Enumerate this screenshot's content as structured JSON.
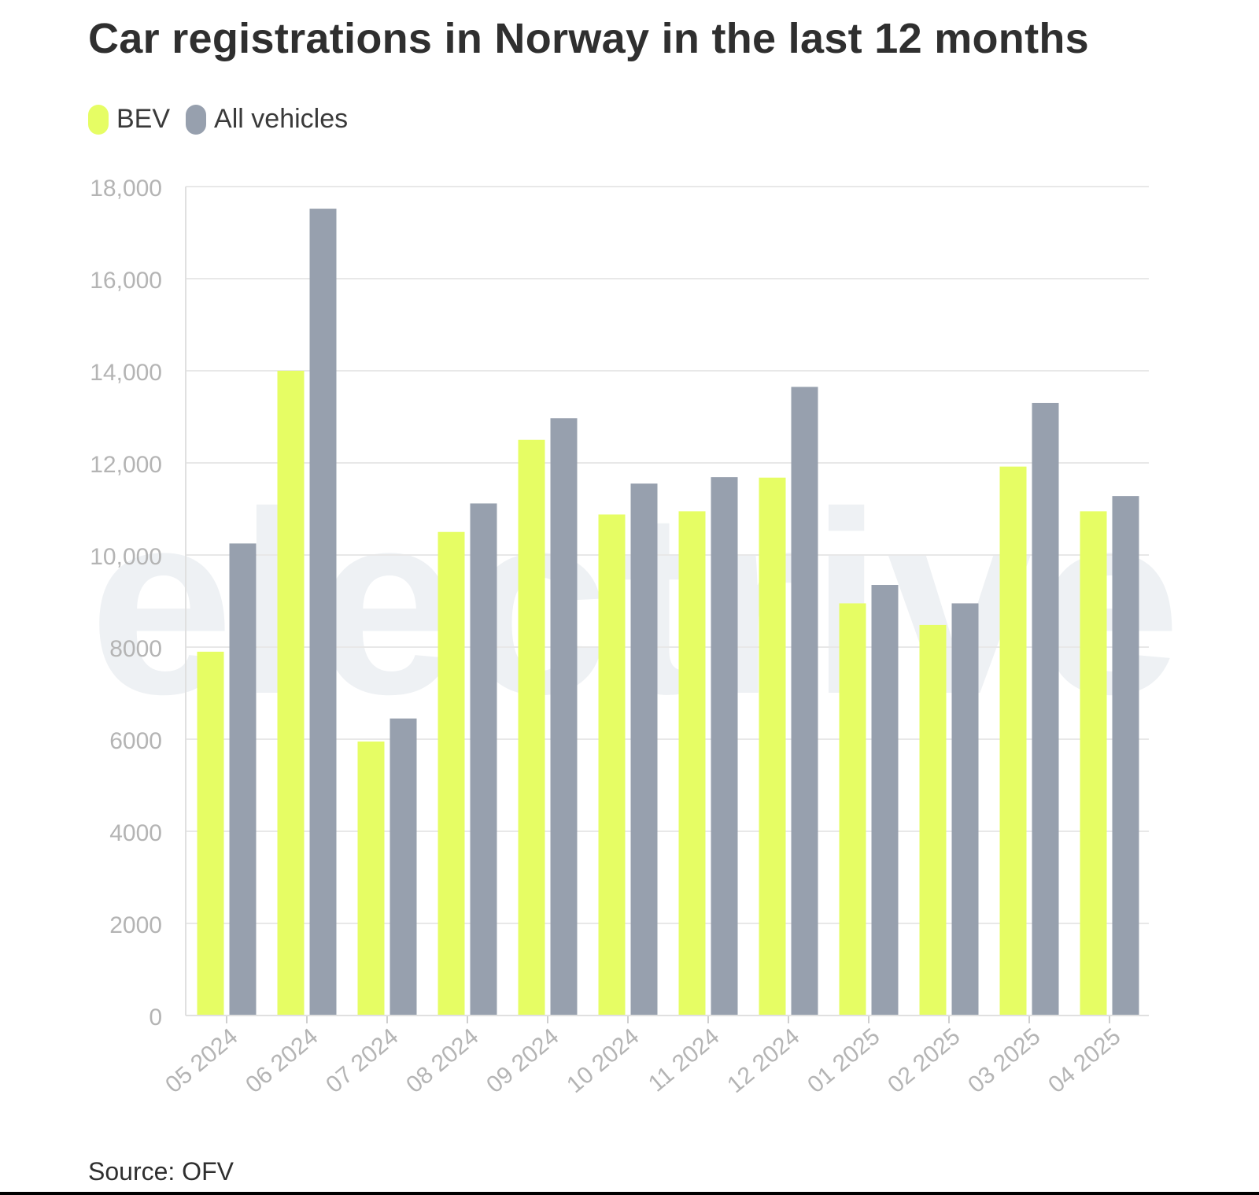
{
  "chart_data": {
    "type": "bar",
    "title": "Car registrations in Norway in the last 12 months",
    "categories": [
      "05 2024",
      "06 2024",
      "07 2024",
      "08 2024",
      "09 2024",
      "10 2024",
      "11 2024",
      "12 2024",
      "01 2025",
      "02 2025",
      "03 2025",
      "04 2025"
    ],
    "series": [
      {
        "name": "BEV",
        "color": "#e6fd64",
        "values": [
          7900,
          14000,
          5950,
          10500,
          12500,
          10880,
          10950,
          11680,
          8950,
          8480,
          11920,
          10950
        ]
      },
      {
        "name": "All vehicles",
        "color": "#97a0ae",
        "values": [
          10250,
          17520,
          6450,
          11120,
          12970,
          11550,
          11690,
          13650,
          9350,
          8950,
          13300,
          11280
        ]
      }
    ],
    "yticks": [
      "0",
      "2000",
      "4000",
      "6000",
      "8000",
      "10,000",
      "12,000",
      "14,000",
      "16,000",
      "18,000"
    ],
    "ylim": [
      0,
      18000
    ],
    "xlabel": "",
    "ylabel": "",
    "grid": true,
    "legend_position": "top-left",
    "watermark": "electrive"
  },
  "legend": {
    "bev_label": "BEV",
    "all_label": "All vehicles",
    "bev_color": "#e6fd64",
    "all_color": "#97a0ae"
  },
  "source": "Source: OFV"
}
